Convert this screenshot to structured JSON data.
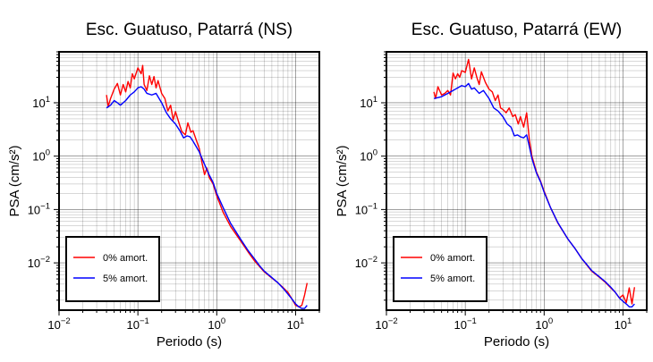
{
  "chart_data": [
    {
      "type": "line",
      "title": "Esc. Guatuso, Patarrá (NS)",
      "xlabel": "Periodo (s)",
      "ylabel": "PSA (cm/s²)",
      "xscale": "log",
      "yscale": "log",
      "xlim": [
        0.01,
        20
      ],
      "ylim": [
        0.0013,
        90
      ],
      "grid": true,
      "legend_position": "bottom-left",
      "x_ticks": [
        {
          "value": 0.01,
          "base": "10",
          "exp": "−2"
        },
        {
          "value": 0.1,
          "base": "10",
          "exp": "−1"
        },
        {
          "value": 1,
          "base": "10",
          "exp": "0"
        },
        {
          "value": 10,
          "base": "10",
          "exp": "1"
        }
      ],
      "y_ticks": [
        {
          "value": 0.01,
          "base": "10",
          "exp": "−2"
        },
        {
          "value": 0.1,
          "base": "10",
          "exp": "−1"
        },
        {
          "value": 1,
          "base": "10",
          "exp": "0"
        },
        {
          "value": 10,
          "base": "10",
          "exp": "1"
        }
      ],
      "series": [
        {
          "name": "0% amort.",
          "color": "#ff0000",
          "points": [
            [
              0.04,
              14
            ],
            [
              0.042,
              8.5
            ],
            [
              0.045,
              12
            ],
            [
              0.05,
              18
            ],
            [
              0.055,
              23
            ],
            [
              0.06,
              14
            ],
            [
              0.065,
              22
            ],
            [
              0.07,
              16
            ],
            [
              0.075,
              25
            ],
            [
              0.08,
              19
            ],
            [
              0.085,
              35
            ],
            [
              0.09,
              28
            ],
            [
              0.1,
              45
            ],
            [
              0.11,
              35
            ],
            [
              0.115,
              50
            ],
            [
              0.12,
              22
            ],
            [
              0.13,
              17
            ],
            [
              0.14,
              32
            ],
            [
              0.15,
              22
            ],
            [
              0.16,
              31
            ],
            [
              0.17,
              19
            ],
            [
              0.18,
              26
            ],
            [
              0.2,
              15
            ],
            [
              0.22,
              12
            ],
            [
              0.24,
              7
            ],
            [
              0.26,
              9
            ],
            [
              0.28,
              4.8
            ],
            [
              0.3,
              6.8
            ],
            [
              0.33,
              4.3
            ],
            [
              0.36,
              2.9
            ],
            [
              0.4,
              2.5
            ],
            [
              0.43,
              4.2
            ],
            [
              0.47,
              2.8
            ],
            [
              0.5,
              3
            ],
            [
              0.55,
              2
            ],
            [
              0.6,
              1.4
            ],
            [
              0.65,
              0.75
            ],
            [
              0.7,
              0.45
            ],
            [
              0.75,
              0.6
            ],
            [
              0.8,
              0.4
            ],
            [
              0.9,
              0.3
            ],
            [
              1,
              0.18
            ],
            [
              1.2,
              0.09
            ],
            [
              1.5,
              0.048
            ],
            [
              2,
              0.026
            ],
            [
              2.5,
              0.016
            ],
            [
              3,
              0.011
            ],
            [
              3.5,
              0.0085
            ],
            [
              4,
              0.0068
            ],
            [
              5,
              0.0052
            ],
            [
              6,
              0.0042
            ],
            [
              7,
              0.0034
            ],
            [
              8,
              0.0028
            ],
            [
              9,
              0.0021
            ],
            [
              10,
              0.0016
            ],
            [
              11,
              0.0015
            ],
            [
              12,
              0.0016
            ],
            [
              13,
              0.0025
            ],
            [
              14,
              0.0042
            ]
          ]
        },
        {
          "name": "5% amort.",
          "color": "#0000ff",
          "points": [
            [
              0.04,
              8
            ],
            [
              0.045,
              9
            ],
            [
              0.05,
              11
            ],
            [
              0.055,
              10
            ],
            [
              0.06,
              9
            ],
            [
              0.07,
              11
            ],
            [
              0.08,
              14
            ],
            [
              0.09,
              16
            ],
            [
              0.1,
              19
            ],
            [
              0.11,
              20
            ],
            [
              0.12,
              18
            ],
            [
              0.13,
              15
            ],
            [
              0.15,
              14
            ],
            [
              0.17,
              15
            ],
            [
              0.2,
              10
            ],
            [
              0.23,
              6.5
            ],
            [
              0.26,
              5
            ],
            [
              0.3,
              4
            ],
            [
              0.34,
              3
            ],
            [
              0.38,
              2.2
            ],
            [
              0.42,
              2.4
            ],
            [
              0.46,
              2.3
            ],
            [
              0.5,
              1.9
            ],
            [
              0.55,
              1.5
            ],
            [
              0.6,
              1.2
            ],
            [
              0.7,
              0.7
            ],
            [
              0.8,
              0.45
            ],
            [
              0.9,
              0.32
            ],
            [
              1,
              0.2
            ],
            [
              1.2,
              0.11
            ],
            [
              1.5,
              0.055
            ],
            [
              2,
              0.028
            ],
            [
              2.5,
              0.017
            ],
            [
              3,
              0.012
            ],
            [
              3.5,
              0.0088
            ],
            [
              4,
              0.007
            ],
            [
              5,
              0.0053
            ],
            [
              6,
              0.0042
            ],
            [
              7,
              0.0033
            ],
            [
              8,
              0.0026
            ],
            [
              9,
              0.0021
            ],
            [
              10,
              0.0017
            ],
            [
              11,
              0.0015
            ],
            [
              12,
              0.0014
            ],
            [
              13,
              0.0014
            ],
            [
              14,
              0.0016
            ]
          ]
        }
      ]
    },
    {
      "type": "line",
      "title": "Esc. Guatuso, Patarrá (EW)",
      "xlabel": "Periodo (s)",
      "ylabel": "PSA (cm/s²)",
      "xscale": "log",
      "yscale": "log",
      "xlim": [
        0.01,
        20
      ],
      "ylim": [
        0.0013,
        90
      ],
      "grid": true,
      "legend_position": "bottom-left",
      "x_ticks": [
        {
          "value": 0.01,
          "base": "10",
          "exp": "−2"
        },
        {
          "value": 0.1,
          "base": "10",
          "exp": "−1"
        },
        {
          "value": 1,
          "base": "10",
          "exp": "0"
        },
        {
          "value": 10,
          "base": "10",
          "exp": "1"
        }
      ],
      "y_ticks": [
        {
          "value": 0.01,
          "base": "10",
          "exp": "−2"
        },
        {
          "value": 0.1,
          "base": "10",
          "exp": "−1"
        },
        {
          "value": 1,
          "base": "10",
          "exp": "0"
        },
        {
          "value": 10,
          "base": "10",
          "exp": "1"
        }
      ],
      "series": [
        {
          "name": "0% amort.",
          "color": "#ff0000",
          "points": [
            [
              0.04,
              16
            ],
            [
              0.042,
              12
            ],
            [
              0.045,
              20
            ],
            [
              0.05,
              14
            ],
            [
              0.055,
              15
            ],
            [
              0.06,
              17
            ],
            [
              0.065,
              14
            ],
            [
              0.07,
              36
            ],
            [
              0.075,
              28
            ],
            [
              0.08,
              35
            ],
            [
              0.085,
              30
            ],
            [
              0.09,
              40
            ],
            [
              0.1,
              37
            ],
            [
              0.11,
              65
            ],
            [
              0.12,
              28
            ],
            [
              0.13,
              45
            ],
            [
              0.14,
              30
            ],
            [
              0.15,
              22
            ],
            [
              0.16,
              38
            ],
            [
              0.18,
              24
            ],
            [
              0.2,
              18
            ],
            [
              0.22,
              16
            ],
            [
              0.24,
              11
            ],
            [
              0.26,
              14
            ],
            [
              0.28,
              8
            ],
            [
              0.3,
              7.5
            ],
            [
              0.33,
              6.5
            ],
            [
              0.36,
              8
            ],
            [
              0.4,
              5.5
            ],
            [
              0.43,
              6
            ],
            [
              0.47,
              4
            ],
            [
              0.5,
              5.5
            ],
            [
              0.55,
              3.5
            ],
            [
              0.6,
              6.5
            ],
            [
              0.65,
              2
            ],
            [
              0.7,
              1
            ],
            [
              0.8,
              0.5
            ],
            [
              0.9,
              0.34
            ],
            [
              1,
              0.22
            ],
            [
              1.2,
              0.11
            ],
            [
              1.5,
              0.055
            ],
            [
              2,
              0.028
            ],
            [
              2.5,
              0.018
            ],
            [
              3,
              0.012
            ],
            [
              3.5,
              0.009
            ],
            [
              4,
              0.007
            ],
            [
              5,
              0.0054
            ],
            [
              6,
              0.0043
            ],
            [
              7,
              0.0034
            ],
            [
              8,
              0.0028
            ],
            [
              9,
              0.0022
            ],
            [
              10,
              0.0025
            ],
            [
              11,
              0.0018
            ],
            [
              12,
              0.0034
            ],
            [
              13,
              0.0017
            ],
            [
              14,
              0.0035
            ]
          ]
        },
        {
          "name": "5% amort.",
          "color": "#0000ff",
          "points": [
            [
              0.04,
              12
            ],
            [
              0.045,
              12.5
            ],
            [
              0.05,
              13
            ],
            [
              0.055,
              14
            ],
            [
              0.06,
              15
            ],
            [
              0.07,
              17
            ],
            [
              0.08,
              19
            ],
            [
              0.09,
              21
            ],
            [
              0.1,
              20
            ],
            [
              0.11,
              23
            ],
            [
              0.12,
              18
            ],
            [
              0.13,
              19
            ],
            [
              0.15,
              15
            ],
            [
              0.17,
              17
            ],
            [
              0.2,
              12
            ],
            [
              0.23,
              8
            ],
            [
              0.26,
              7
            ],
            [
              0.3,
              5.5
            ],
            [
              0.34,
              4
            ],
            [
              0.38,
              3.5
            ],
            [
              0.42,
              2.4
            ],
            [
              0.46,
              2.5
            ],
            [
              0.5,
              2.3
            ],
            [
              0.55,
              2.2
            ],
            [
              0.6,
              2.5
            ],
            [
              0.65,
              1.5
            ],
            [
              0.7,
              0.9
            ],
            [
              0.8,
              0.48
            ],
            [
              0.9,
              0.33
            ],
            [
              1,
              0.21
            ],
            [
              1.2,
              0.11
            ],
            [
              1.5,
              0.056
            ],
            [
              2,
              0.028
            ],
            [
              2.5,
              0.018
            ],
            [
              3,
              0.012
            ],
            [
              3.5,
              0.0092
            ],
            [
              4,
              0.0072
            ],
            [
              5,
              0.0055
            ],
            [
              6,
              0.0044
            ],
            [
              7,
              0.0035
            ],
            [
              8,
              0.0028
            ],
            [
              9,
              0.0022
            ],
            [
              10,
              0.0019
            ],
            [
              11,
              0.0017
            ],
            [
              12,
              0.0015
            ],
            [
              13,
              0.0015
            ],
            [
              14,
              0.0017
            ]
          ]
        }
      ]
    }
  ]
}
